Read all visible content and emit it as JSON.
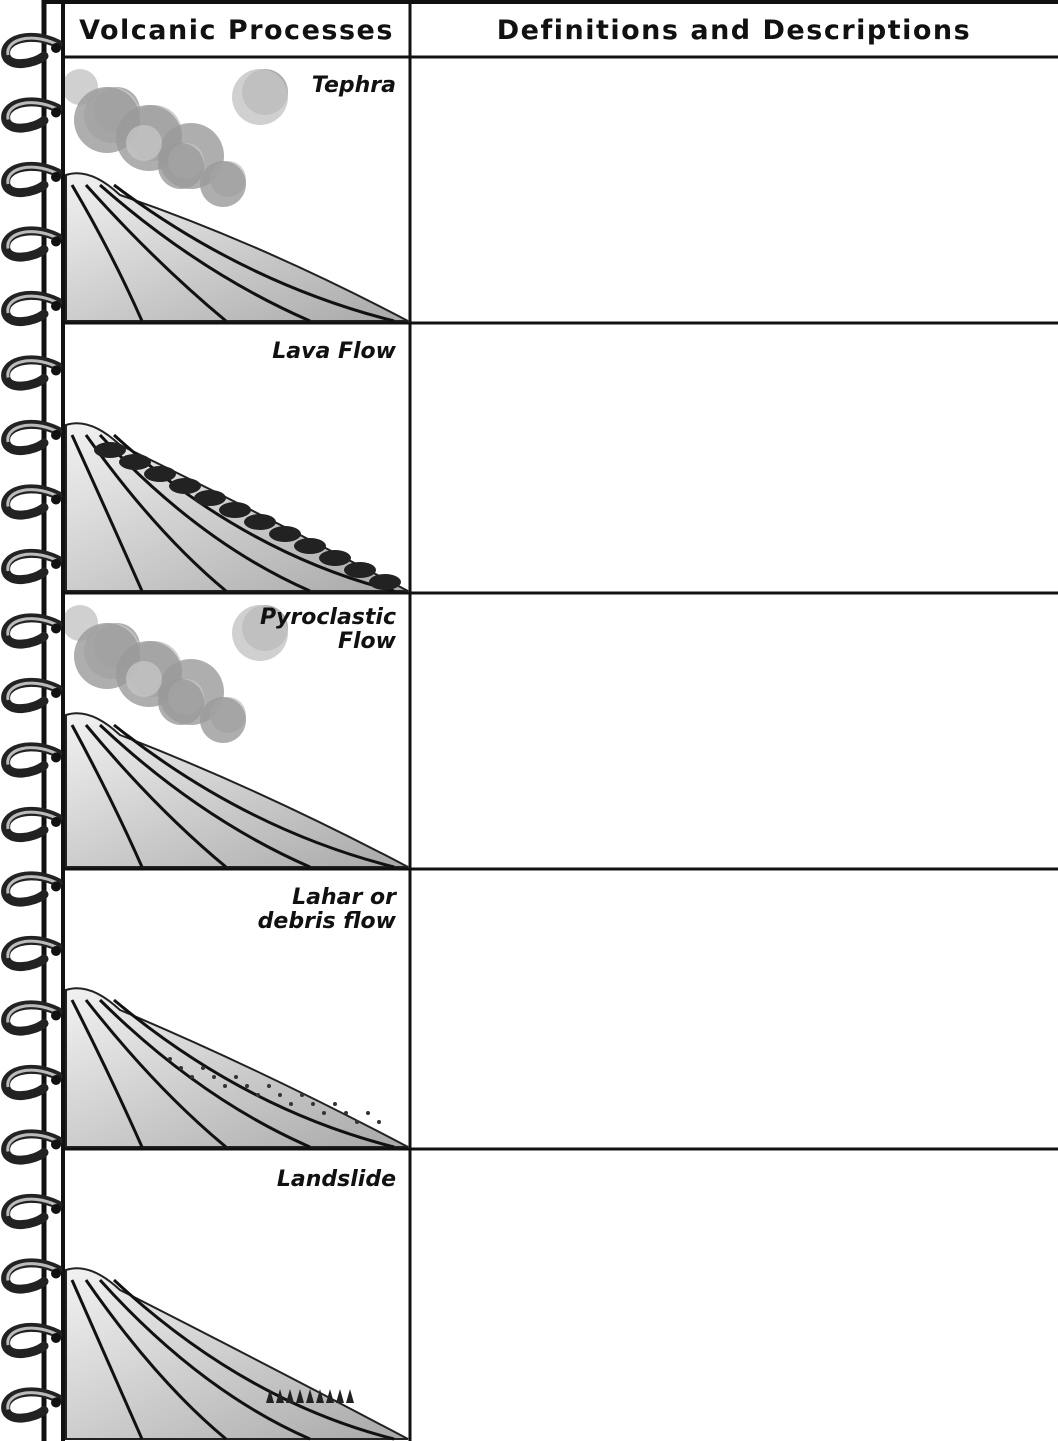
{
  "header": {
    "columns": [
      "Volcanic Processes",
      "Definitions and Descriptions"
    ]
  },
  "rows": [
    {
      "label": "Tephra"
    },
    {
      "label": "Lava Flow"
    },
    {
      "label": "Pyroclastic Flow"
    },
    {
      "label": "Lahar or debris flow"
    },
    {
      "label": "Landslide"
    }
  ]
}
